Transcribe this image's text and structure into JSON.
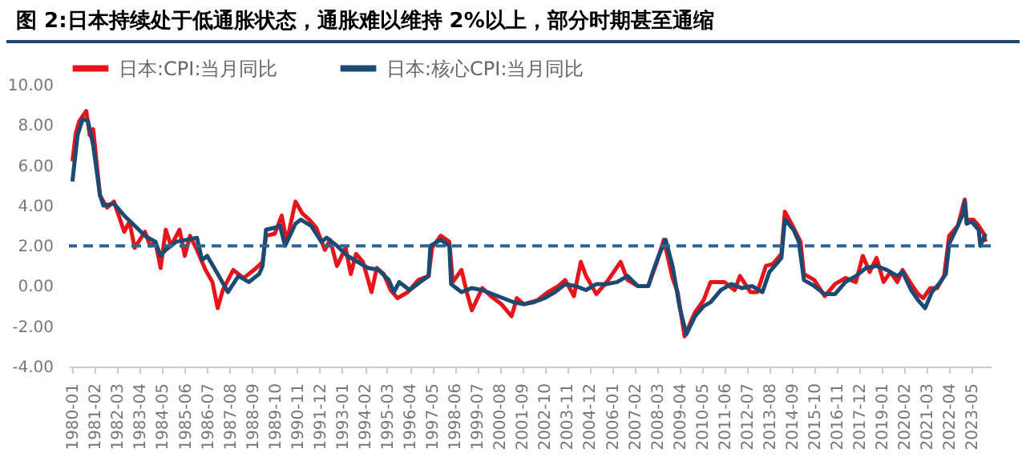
{
  "chart_data": {
    "type": "line",
    "title": "图 2:日本持续处于低通胀状态，通胀难以维持 2%以上，部分时期甚至通缩",
    "legend": "top",
    "grid": false,
    "line_style": "solid",
    "marker": "none",
    "xlim": [
      "1979-11",
      "2024-04"
    ],
    "xticks": [
      "1980-01",
      "1981-02",
      "1982-03",
      "1983-04",
      "1984-05",
      "1985-06",
      "1986-07",
      "1987-08",
      "1988-09",
      "1989-10",
      "1990-11",
      "1991-12",
      "1993-01",
      "1994-02",
      "1995-03",
      "1996-04",
      "1997-05",
      "1998-06",
      "1999-07",
      "2000-08",
      "2001-09",
      "2002-10",
      "2003-11",
      "2004-12",
      "2006-01",
      "2007-02",
      "2008-03",
      "2009-04",
      "2010-05",
      "2011-06",
      "2012-07",
      "2013-08",
      "2014-09",
      "2015-10",
      "2016-11",
      "2017-12",
      "2019-01",
      "2020-02",
      "2021-03",
      "2022-04",
      "2023-05"
    ],
    "ylim": [
      -4,
      10
    ],
    "yticks": [
      {
        "value": -4,
        "label": "-4.00"
      },
      {
        "value": -2,
        "label": "-2.00"
      },
      {
        "value": 0,
        "label": "0.00"
      },
      {
        "value": 2,
        "label": "2.00"
      },
      {
        "value": 4,
        "label": "4.00"
      },
      {
        "value": 6,
        "label": "6.00"
      },
      {
        "value": 8,
        "label": "8.00"
      },
      {
        "value": 10,
        "label": "10.00"
      }
    ],
    "ref_lines": [
      {
        "axis": "y",
        "value": 2,
        "color": "#2e6594",
        "line_style": "dashed"
      }
    ],
    "series": [
      {
        "name": "日本:CPI:当月同比",
        "color": "#e8141c",
        "x": [
          "1980-01",
          "1980-03",
          "1980-05",
          "1980-09",
          "1980-11",
          "1981-01",
          "1981-05",
          "1981-09",
          "1982-01",
          "1982-07",
          "1982-10",
          "1983-01",
          "1983-07",
          "1983-10",
          "1984-01",
          "1984-04",
          "1984-07",
          "1984-10",
          "1985-03",
          "1985-06",
          "1985-09",
          "1986-01",
          "1986-06",
          "1986-10",
          "1987-01",
          "1987-04",
          "1987-10",
          "1988-04",
          "1988-10",
          "1989-03",
          "1989-05",
          "1989-10",
          "1990-02",
          "1990-05",
          "1990-10",
          "1991-02",
          "1991-06",
          "1991-10",
          "1992-03",
          "1992-06",
          "1992-10",
          "1993-03",
          "1993-06",
          "1993-09",
          "1994-01",
          "1994-06",
          "1994-09",
          "1995-01",
          "1995-05",
          "1995-09",
          "1996-03",
          "1996-09",
          "1997-03",
          "1997-05",
          "1997-10",
          "1998-03",
          "1998-05",
          "1998-10",
          "1999-01",
          "1999-04",
          "1999-10",
          "2000-03",
          "2000-09",
          "2001-03",
          "2001-06",
          "2001-10",
          "2002-06",
          "2002-12",
          "2003-06",
          "2003-10",
          "2004-03",
          "2004-07",
          "2004-10",
          "2005-04",
          "2005-10",
          "2006-06",
          "2006-10",
          "2007-04",
          "2007-10",
          "2008-03",
          "2008-07",
          "2008-12",
          "2009-03",
          "2009-07",
          "2010-01",
          "2010-06",
          "2010-10",
          "2011-06",
          "2011-12",
          "2012-03",
          "2012-09",
          "2013-01",
          "2013-06",
          "2013-10",
          "2014-03",
          "2014-05",
          "2014-10",
          "2015-02",
          "2015-04",
          "2015-10",
          "2016-04",
          "2016-10",
          "2017-04",
          "2017-10",
          "2018-02",
          "2018-06",
          "2018-10",
          "2019-02",
          "2019-06",
          "2019-10",
          "2020-01",
          "2020-06",
          "2020-10",
          "2021-01",
          "2021-05",
          "2021-09",
          "2022-01",
          "2022-04",
          "2022-09",
          "2022-12",
          "2023-01",
          "2023-02",
          "2023-06",
          "2023-09",
          "2023-12",
          "2024-01"
        ],
        "values": [
          6.2,
          7.6,
          8.2,
          8.7,
          7.5,
          7.8,
          4.5,
          3.9,
          4.2,
          2.7,
          3.2,
          1.9,
          2.7,
          2.0,
          2.2,
          0.9,
          2.8,
          2.0,
          2.8,
          1.5,
          2.5,
          1.8,
          0.8,
          0.2,
          -1.1,
          -0.2,
          0.8,
          0.4,
          0.8,
          1.2,
          2.5,
          2.6,
          3.5,
          2.2,
          4.2,
          3.6,
          3.3,
          2.9,
          1.8,
          2.3,
          1.0,
          1.9,
          0.6,
          1.6,
          1.2,
          -0.3,
          0.9,
          0.6,
          -0.2,
          -0.6,
          -0.3,
          0.3,
          0.5,
          1.9,
          2.5,
          2.2,
          0.2,
          0.8,
          -0.3,
          -1.2,
          -0.1,
          -0.5,
          -0.9,
          -1.5,
          -0.6,
          -0.9,
          -0.7,
          -0.3,
          0.0,
          0.3,
          -0.5,
          1.2,
          0.5,
          -0.4,
          0.2,
          1.2,
          0.3,
          0.0,
          0.0,
          1.2,
          2.3,
          0.4,
          -0.3,
          -2.5,
          -1.3,
          -0.7,
          0.2,
          0.2,
          -0.2,
          0.5,
          -0.3,
          -0.3,
          1.0,
          1.1,
          1.6,
          3.7,
          2.9,
          2.2,
          0.6,
          0.3,
          -0.5,
          0.1,
          0.4,
          0.2,
          1.5,
          0.7,
          1.4,
          0.2,
          0.7,
          0.2,
          0.8,
          0.1,
          -0.4,
          -0.6,
          -0.1,
          -0.1,
          0.5,
          2.5,
          3.0,
          4.0,
          4.3,
          3.3,
          3.3,
          3.0,
          2.6,
          2.2
        ]
      },
      {
        "name": "日本:核心CPI:当月同比",
        "color": "#1b4a72",
        "x": [
          "1980-01",
          "1980-04",
          "1980-07",
          "1980-10",
          "1981-01",
          "1981-05",
          "1981-07",
          "1982-01",
          "1982-07",
          "1983-01",
          "1983-07",
          "1984-01",
          "1984-04",
          "1984-07",
          "1985-01",
          "1985-07",
          "1986-01",
          "1986-04",
          "1986-07",
          "1987-01",
          "1987-07",
          "1988-01",
          "1988-07",
          "1989-01",
          "1989-03",
          "1989-05",
          "1989-10",
          "1990-01",
          "1990-04",
          "1990-10",
          "1991-01",
          "1991-07",
          "1992-01",
          "1992-04",
          "1992-10",
          "1993-04",
          "1993-10",
          "1994-04",
          "1994-10",
          "1995-04",
          "1995-07",
          "1995-10",
          "1996-04",
          "1996-10",
          "1997-03",
          "1997-04",
          "1997-10",
          "1998-03",
          "1998-04",
          "1998-10",
          "1999-04",
          "1999-10",
          "2000-04",
          "2000-10",
          "2001-04",
          "2001-10",
          "2002-04",
          "2002-10",
          "2003-04",
          "2003-10",
          "2004-04",
          "2004-10",
          "2005-04",
          "2005-10",
          "2006-04",
          "2006-10",
          "2007-04",
          "2007-10",
          "2008-01",
          "2008-04",
          "2008-08",
          "2008-12",
          "2009-02",
          "2009-04",
          "2009-08",
          "2010-01",
          "2010-06",
          "2010-10",
          "2011-04",
          "2011-10",
          "2012-04",
          "2012-10",
          "2013-04",
          "2013-08",
          "2014-01",
          "2014-03",
          "2014-05",
          "2014-10",
          "2015-01",
          "2015-04",
          "2015-10",
          "2016-04",
          "2016-10",
          "2017-04",
          "2017-10",
          "2018-04",
          "2018-10",
          "2019-04",
          "2019-10",
          "2020-01",
          "2020-06",
          "2020-10",
          "2021-02",
          "2021-06",
          "2021-10",
          "2022-02",
          "2022-04",
          "2022-09",
          "2022-12",
          "2023-01",
          "2023-02",
          "2023-05",
          "2023-07",
          "2023-09",
          "2023-10",
          "2024-01"
        ],
        "values": [
          5.2,
          7.5,
          8.3,
          8.2,
          7.0,
          4.5,
          4.0,
          4.1,
          3.5,
          3.0,
          2.5,
          2.2,
          1.5,
          1.8,
          2.2,
          2.3,
          2.4,
          1.3,
          1.5,
          0.6,
          -0.3,
          0.5,
          0.2,
          0.6,
          1.0,
          2.8,
          2.9,
          3.0,
          2.0,
          3.1,
          3.3,
          3.0,
          2.2,
          2.4,
          2.0,
          1.5,
          1.2,
          0.9,
          0.8,
          0.3,
          -0.3,
          0.2,
          -0.2,
          0.2,
          0.5,
          2.0,
          2.3,
          2.0,
          0.1,
          -0.3,
          -0.1,
          -0.2,
          -0.4,
          -0.6,
          -0.8,
          -0.9,
          -0.8,
          -0.6,
          -0.3,
          0.1,
          0.0,
          -0.2,
          0.1,
          0.1,
          0.2,
          0.5,
          0.0,
          0.0,
          0.8,
          1.5,
          2.3,
          1.0,
          0.0,
          -1.0,
          -2.4,
          -1.5,
          -1.0,
          -0.8,
          -0.2,
          0.1,
          -0.1,
          0.0,
          -0.3,
          0.7,
          1.2,
          1.4,
          3.3,
          2.8,
          2.2,
          0.3,
          0.0,
          -0.4,
          -0.4,
          0.2,
          0.5,
          0.9,
          1.0,
          0.8,
          0.5,
          0.7,
          -0.2,
          -0.7,
          -1.1,
          -0.3,
          0.1,
          0.6,
          2.1,
          3.0,
          3.6,
          4.2,
          3.1,
          3.2,
          3.0,
          2.8,
          2.0,
          2.6
        ]
      }
    ]
  }
}
